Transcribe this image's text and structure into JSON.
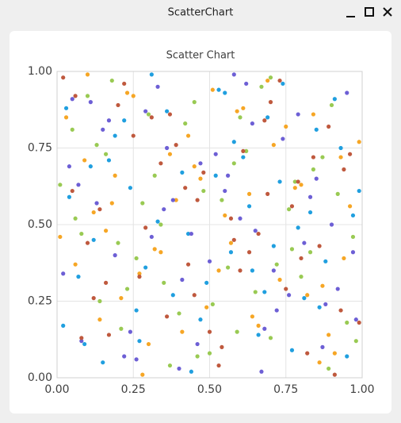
{
  "window": {
    "title": "ScatterChart"
  },
  "chart_data": {
    "type": "scatter",
    "title": "Scatter Chart",
    "xlim": [
      0,
      1
    ],
    "ylim": [
      0,
      1
    ],
    "xticks": [
      {
        "value": 0,
        "label": "0.00"
      },
      {
        "value": 0.25,
        "label": "0.25"
      },
      {
        "value": 0.5,
        "label": "0.50"
      },
      {
        "value": 0.75,
        "label": "0.75"
      },
      {
        "value": 1,
        "label": "1.00"
      }
    ],
    "yticks": [
      {
        "value": 0,
        "label": "0.00"
      },
      {
        "value": 0.25,
        "label": "0.25"
      },
      {
        "value": 0.5,
        "label": "0.50"
      },
      {
        "value": 0.75,
        "label": "0.75"
      },
      {
        "value": 1,
        "label": "1.00"
      }
    ],
    "grid": true,
    "series": [
      {
        "color": "#209fdf",
        "x": [
          0.03,
          0.12,
          0.27,
          0.41,
          0.55,
          0.68,
          0.83,
          0.95,
          0.07,
          0.19,
          0.33,
          0.47,
          0.61,
          0.74,
          0.88,
          0.99,
          0.15,
          0.22,
          0.38,
          0.52,
          0.66,
          0.79,
          0.91,
          0.04,
          0.29,
          0.44,
          0.58,
          0.71,
          0.86,
          0.11,
          0.36,
          0.49,
          0.63,
          0.77,
          0.93,
          0.02,
          0.24,
          0.31,
          0.57,
          0.69,
          0.81,
          0.97,
          0.09,
          0.17,
          0.43,
          0.53,
          0.73,
          0.85,
          0.26,
          0.64
        ],
        "values": [
          0.88,
          0.45,
          0.12,
          0.67,
          0.93,
          0.28,
          0.54,
          0.07,
          0.33,
          0.79,
          0.51,
          0.19,
          0.72,
          0.96,
          0.38,
          0.61,
          0.05,
          0.84,
          0.27,
          0.66,
          0.14,
          0.49,
          0.91,
          0.59,
          0.36,
          0.02,
          0.77,
          0.43,
          0.23,
          0.69,
          0.87,
          0.31,
          0.56,
          0.09,
          0.75,
          0.17,
          0.62,
          0.99,
          0.41,
          0.85,
          0.26,
          0.53,
          0.11,
          0.71,
          0.47,
          0.94,
          0.64,
          0.81,
          0.22,
          0.35
        ]
      },
      {
        "color": "#99ca53",
        "x": [
          0.06,
          0.18,
          0.35,
          0.5,
          0.62,
          0.77,
          0.9,
          0.01,
          0.14,
          0.28,
          0.42,
          0.56,
          0.7,
          0.84,
          0.97,
          0.1,
          0.23,
          0.37,
          0.48,
          0.6,
          0.72,
          0.87,
          0.95,
          0.05,
          0.2,
          0.32,
          0.45,
          0.59,
          0.76,
          0.89,
          0.13,
          0.26,
          0.4,
          0.54,
          0.67,
          0.8,
          0.92,
          0.08,
          0.3,
          0.46,
          0.65,
          0.78,
          0.98,
          0.16,
          0.34,
          0.51,
          0.7,
          0.83,
          0.21,
          0.58
        ],
        "values": [
          0.52,
          0.97,
          0.31,
          0.08,
          0.74,
          0.42,
          0.89,
          0.63,
          0.25,
          0.57,
          0.83,
          0.36,
          0.13,
          0.68,
          0.46,
          0.92,
          0.29,
          0.04,
          0.61,
          0.85,
          0.37,
          0.72,
          0.18,
          0.81,
          0.44,
          0.66,
          0.9,
          0.15,
          0.55,
          0.03,
          0.76,
          0.39,
          0.21,
          0.58,
          0.95,
          0.33,
          0.6,
          0.47,
          0.86,
          0.07,
          0.28,
          0.64,
          0.12,
          0.73,
          0.5,
          0.24,
          0.98,
          0.41,
          0.16,
          0.7
        ]
      },
      {
        "color": "#f6a625",
        "x": [
          0.09,
          0.21,
          0.39,
          0.51,
          0.66,
          0.8,
          0.94,
          0.03,
          0.16,
          0.3,
          0.45,
          0.59,
          0.73,
          0.86,
          0.99,
          0.12,
          0.25,
          0.34,
          0.49,
          0.63,
          0.75,
          0.89,
          0.06,
          0.19,
          0.28,
          0.43,
          0.57,
          0.69,
          0.82,
          0.96,
          0.14,
          0.37,
          0.53,
          0.61,
          0.78,
          0.91,
          0.01,
          0.23,
          0.41,
          0.55,
          0.71,
          0.87,
          0.1,
          0.32,
          0.47,
          0.64,
          0.84,
          0.18,
          0.27,
          0.93
        ],
        "values": [
          0.71,
          0.26,
          0.58,
          0.94,
          0.17,
          0.63,
          0.39,
          0.85,
          0.48,
          0.11,
          0.69,
          0.87,
          0.32,
          0.05,
          0.77,
          0.54,
          0.92,
          0.41,
          0.23,
          0.6,
          0.82,
          0.14,
          0.37,
          0.66,
          0.01,
          0.79,
          0.44,
          0.97,
          0.27,
          0.56,
          0.19,
          0.73,
          0.35,
          0.88,
          0.62,
          0.08,
          0.46,
          0.93,
          0.15,
          0.53,
          0.76,
          0.3,
          0.99,
          0.42,
          0.65,
          0.2,
          0.86,
          0.57,
          0.34,
          0.72
        ]
      },
      {
        "color": "#6d5fd5",
        "x": [
          0.02,
          0.15,
          0.26,
          0.44,
          0.58,
          0.72,
          0.85,
          0.97,
          0.11,
          0.24,
          0.38,
          0.52,
          0.67,
          0.79,
          0.92,
          0.07,
          0.19,
          0.33,
          0.46,
          0.6,
          0.74,
          0.88,
          0.04,
          0.29,
          0.41,
          0.55,
          0.68,
          0.81,
          0.95,
          0.13,
          0.22,
          0.36,
          0.5,
          0.64,
          0.76,
          0.9,
          0.08,
          0.31,
          0.47,
          0.62,
          0.83,
          0.98,
          0.17,
          0.4,
          0.56,
          0.71,
          0.87,
          0.05,
          0.35,
          0.65
        ],
        "values": [
          0.34,
          0.81,
          0.06,
          0.47,
          0.99,
          0.22,
          0.65,
          0.41,
          0.9,
          0.15,
          0.58,
          0.73,
          0.02,
          0.86,
          0.29,
          0.63,
          0.4,
          0.95,
          0.11,
          0.52,
          0.78,
          0.24,
          0.69,
          0.87,
          0.32,
          0.61,
          0.16,
          0.44,
          0.93,
          0.57,
          0.07,
          0.75,
          0.38,
          0.83,
          0.27,
          0.5,
          0.12,
          0.46,
          0.7,
          0.96,
          0.59,
          0.19,
          0.84,
          0.03,
          0.66,
          0.35,
          0.1,
          0.91,
          0.55,
          0.48
        ]
      },
      {
        "color": "#bf593e",
        "x": [
          0.05,
          0.17,
          0.31,
          0.43,
          0.57,
          0.7,
          0.82,
          0.96,
          0.1,
          0.22,
          0.36,
          0.48,
          0.63,
          0.75,
          0.89,
          0.02,
          0.14,
          0.27,
          0.39,
          0.53,
          0.66,
          0.79,
          0.93,
          0.08,
          0.2,
          0.34,
          0.46,
          0.6,
          0.73,
          0.86,
          0.99,
          0.12,
          0.25,
          0.42,
          0.54,
          0.68,
          0.8,
          0.94,
          0.06,
          0.29,
          0.45,
          0.61,
          0.77,
          0.91,
          0.16,
          0.37,
          0.5,
          0.69,
          0.84,
          0.58
        ],
        "values": [
          0.61,
          0.14,
          0.85,
          0.37,
          0.52,
          0.9,
          0.08,
          0.73,
          0.44,
          0.96,
          0.2,
          0.67,
          0.41,
          0.29,
          0.82,
          0.98,
          0.55,
          0.33,
          0.76,
          0.04,
          0.47,
          0.64,
          0.22,
          0.13,
          0.89,
          0.7,
          0.58,
          0.35,
          0.97,
          0.43,
          0.18,
          0.26,
          0.79,
          0.62,
          0.1,
          0.84,
          0.39,
          0.68,
          0.92,
          0.49,
          0.27,
          0.74,
          0.56,
          0.01,
          0.31,
          0.86,
          0.15,
          0.6,
          0.72,
          0.45
        ]
      }
    ]
  }
}
